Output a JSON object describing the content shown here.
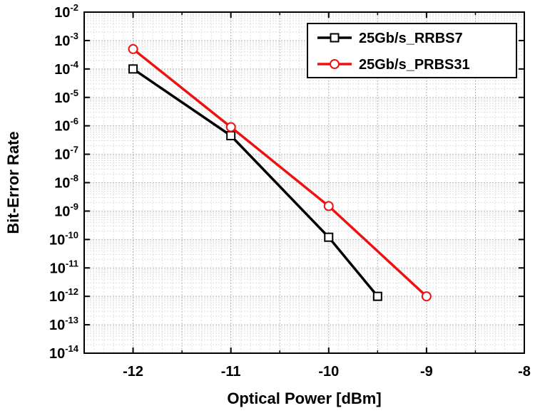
{
  "chart_data": {
    "type": "line",
    "title": "",
    "xlabel": "Optical Power [dBm]",
    "ylabel": "Bit-Error Rate",
    "xlim": [
      -12.5,
      -8
    ],
    "xticks": [
      -12,
      -11,
      -10,
      -9,
      -8
    ],
    "x_tick_labels": [
      "-12",
      "-11",
      "-10",
      "-9",
      "-8"
    ],
    "y_scale": "log",
    "ylim": [
      1e-14,
      0.01
    ],
    "y_tick_base": "10",
    "y_tick_exponents": [
      "-14",
      "-13",
      "-12",
      "-11",
      "-10",
      "-9",
      "-8",
      "-7",
      "-6",
      "-5",
      "-4",
      "-3",
      "-2"
    ],
    "grid": true,
    "legend_position": "top-right",
    "series": [
      {
        "name": "25Gb/s_RRBS7",
        "color": "#000000",
        "marker": "square",
        "x": [
          -12,
          -11,
          -10,
          -9.5
        ],
        "y": [
          0.0001,
          4.5e-07,
          1.2e-10,
          1e-12
        ]
      },
      {
        "name": "25Gb/s_PRBS31",
        "color": "#ee1111",
        "marker": "circle",
        "x": [
          -12,
          -11,
          -10,
          -9
        ],
        "y": [
          0.0005,
          9e-07,
          1.5e-09,
          1e-12
        ]
      }
    ]
  }
}
